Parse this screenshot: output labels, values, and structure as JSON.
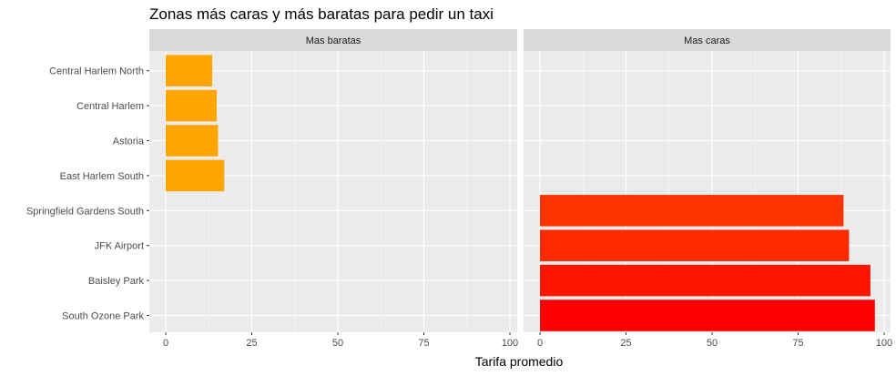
{
  "chart_data": {
    "type": "bar",
    "orientation": "horizontal",
    "title": "Zonas más caras y más baratas para pedir un taxi",
    "xlabel": "Tarifa promedio",
    "ylabel": "",
    "xlim": [
      0,
      100
    ],
    "x_ticks": [
      "0",
      "25",
      "50",
      "75",
      "100"
    ],
    "grid": true,
    "categories": [
      "Central Harlem North",
      "Central Harlem",
      "Astoria",
      "East Harlem South",
      "Springfield Gardens South",
      "JFK Airport",
      "Baisley Park",
      "South Ozone Park"
    ],
    "panels": [
      {
        "name": "Mas baratas",
        "bars": [
          {
            "category": "Central Harlem North",
            "value": 13.5,
            "color": "#ffa500"
          },
          {
            "category": "Central Harlem",
            "value": 14.8,
            "color": "#ffa500"
          },
          {
            "category": "Astoria",
            "value": 15.2,
            "color": "#ffa500"
          },
          {
            "category": "East Harlem South",
            "value": 17.0,
            "color": "#ffa500"
          }
        ]
      },
      {
        "name": "Mas caras",
        "bars": [
          {
            "category": "Springfield Gardens South",
            "value": 88.2,
            "color": "#ff3300"
          },
          {
            "category": "JFK Airport",
            "value": 89.8,
            "color": "#ff2a00"
          },
          {
            "category": "Baisley Park",
            "value": 96.0,
            "color": "#ff1500"
          },
          {
            "category": "South Ozone Park",
            "value": 97.3,
            "color": "#ff0000"
          }
        ]
      }
    ]
  }
}
